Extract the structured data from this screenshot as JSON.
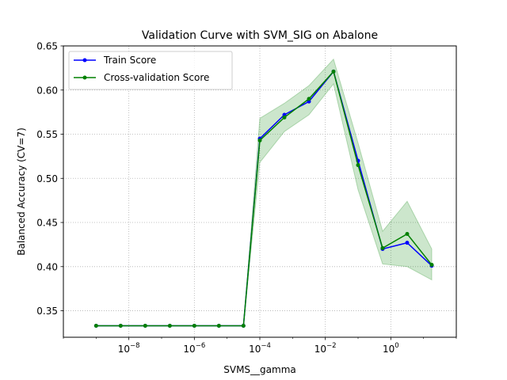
{
  "chart_data": {
    "type": "line",
    "title": "Validation Curve with SVM_SIG on Abalone",
    "xlabel": "SVMS__gamma",
    "ylabel": "Balanced Accuracy (CV=7)",
    "xscale": "log",
    "xlim": [
      1e-10,
      100
    ],
    "ylim": [
      0.32,
      0.65
    ],
    "grid": true,
    "legend_position": "top-left",
    "x_ticks": [
      {
        "value": 1e-08,
        "base": "10",
        "exp": "−8"
      },
      {
        "value": 1e-06,
        "base": "10",
        "exp": "−6"
      },
      {
        "value": 0.0001,
        "base": "10",
        "exp": "−4"
      },
      {
        "value": 0.01,
        "base": "10",
        "exp": "−2"
      },
      {
        "value": 1,
        "base": "10",
        "exp": "0"
      }
    ],
    "y_ticks": [
      "0.35",
      "0.40",
      "0.45",
      "0.50",
      "0.55",
      "0.60",
      "0.65"
    ],
    "x": [
      1e-09,
      5.62e-09,
      3.16e-08,
      1.78e-07,
      1e-06,
      5.62e-06,
      3.16e-05,
      0.0001,
      0.000562,
      0.00316,
      0.0178,
      0.1,
      0.562,
      3.16,
      17.8
    ],
    "series": [
      {
        "name": "Train Score",
        "color": "#0000ff",
        "values": [
          0.333,
          0.333,
          0.333,
          0.333,
          0.333,
          0.333,
          0.333,
          0.545,
          0.572,
          0.587,
          0.621,
          0.52,
          0.42,
          0.427,
          0.401
        ]
      },
      {
        "name": "Cross-validation Score",
        "color": "#008000",
        "band_color": "#008000",
        "values": [
          0.333,
          0.333,
          0.333,
          0.333,
          0.333,
          0.333,
          0.333,
          0.543,
          0.569,
          0.59,
          0.621,
          0.515,
          0.421,
          0.437,
          0.402
        ],
        "band_lower": [
          0.333,
          0.333,
          0.333,
          0.333,
          0.333,
          0.333,
          0.333,
          0.518,
          0.553,
          0.572,
          0.607,
          0.487,
          0.403,
          0.4,
          0.385
        ],
        "band_upper": [
          0.333,
          0.333,
          0.333,
          0.333,
          0.333,
          0.333,
          0.333,
          0.568,
          0.585,
          0.605,
          0.635,
          0.54,
          0.44,
          0.474,
          0.42
        ]
      }
    ]
  }
}
